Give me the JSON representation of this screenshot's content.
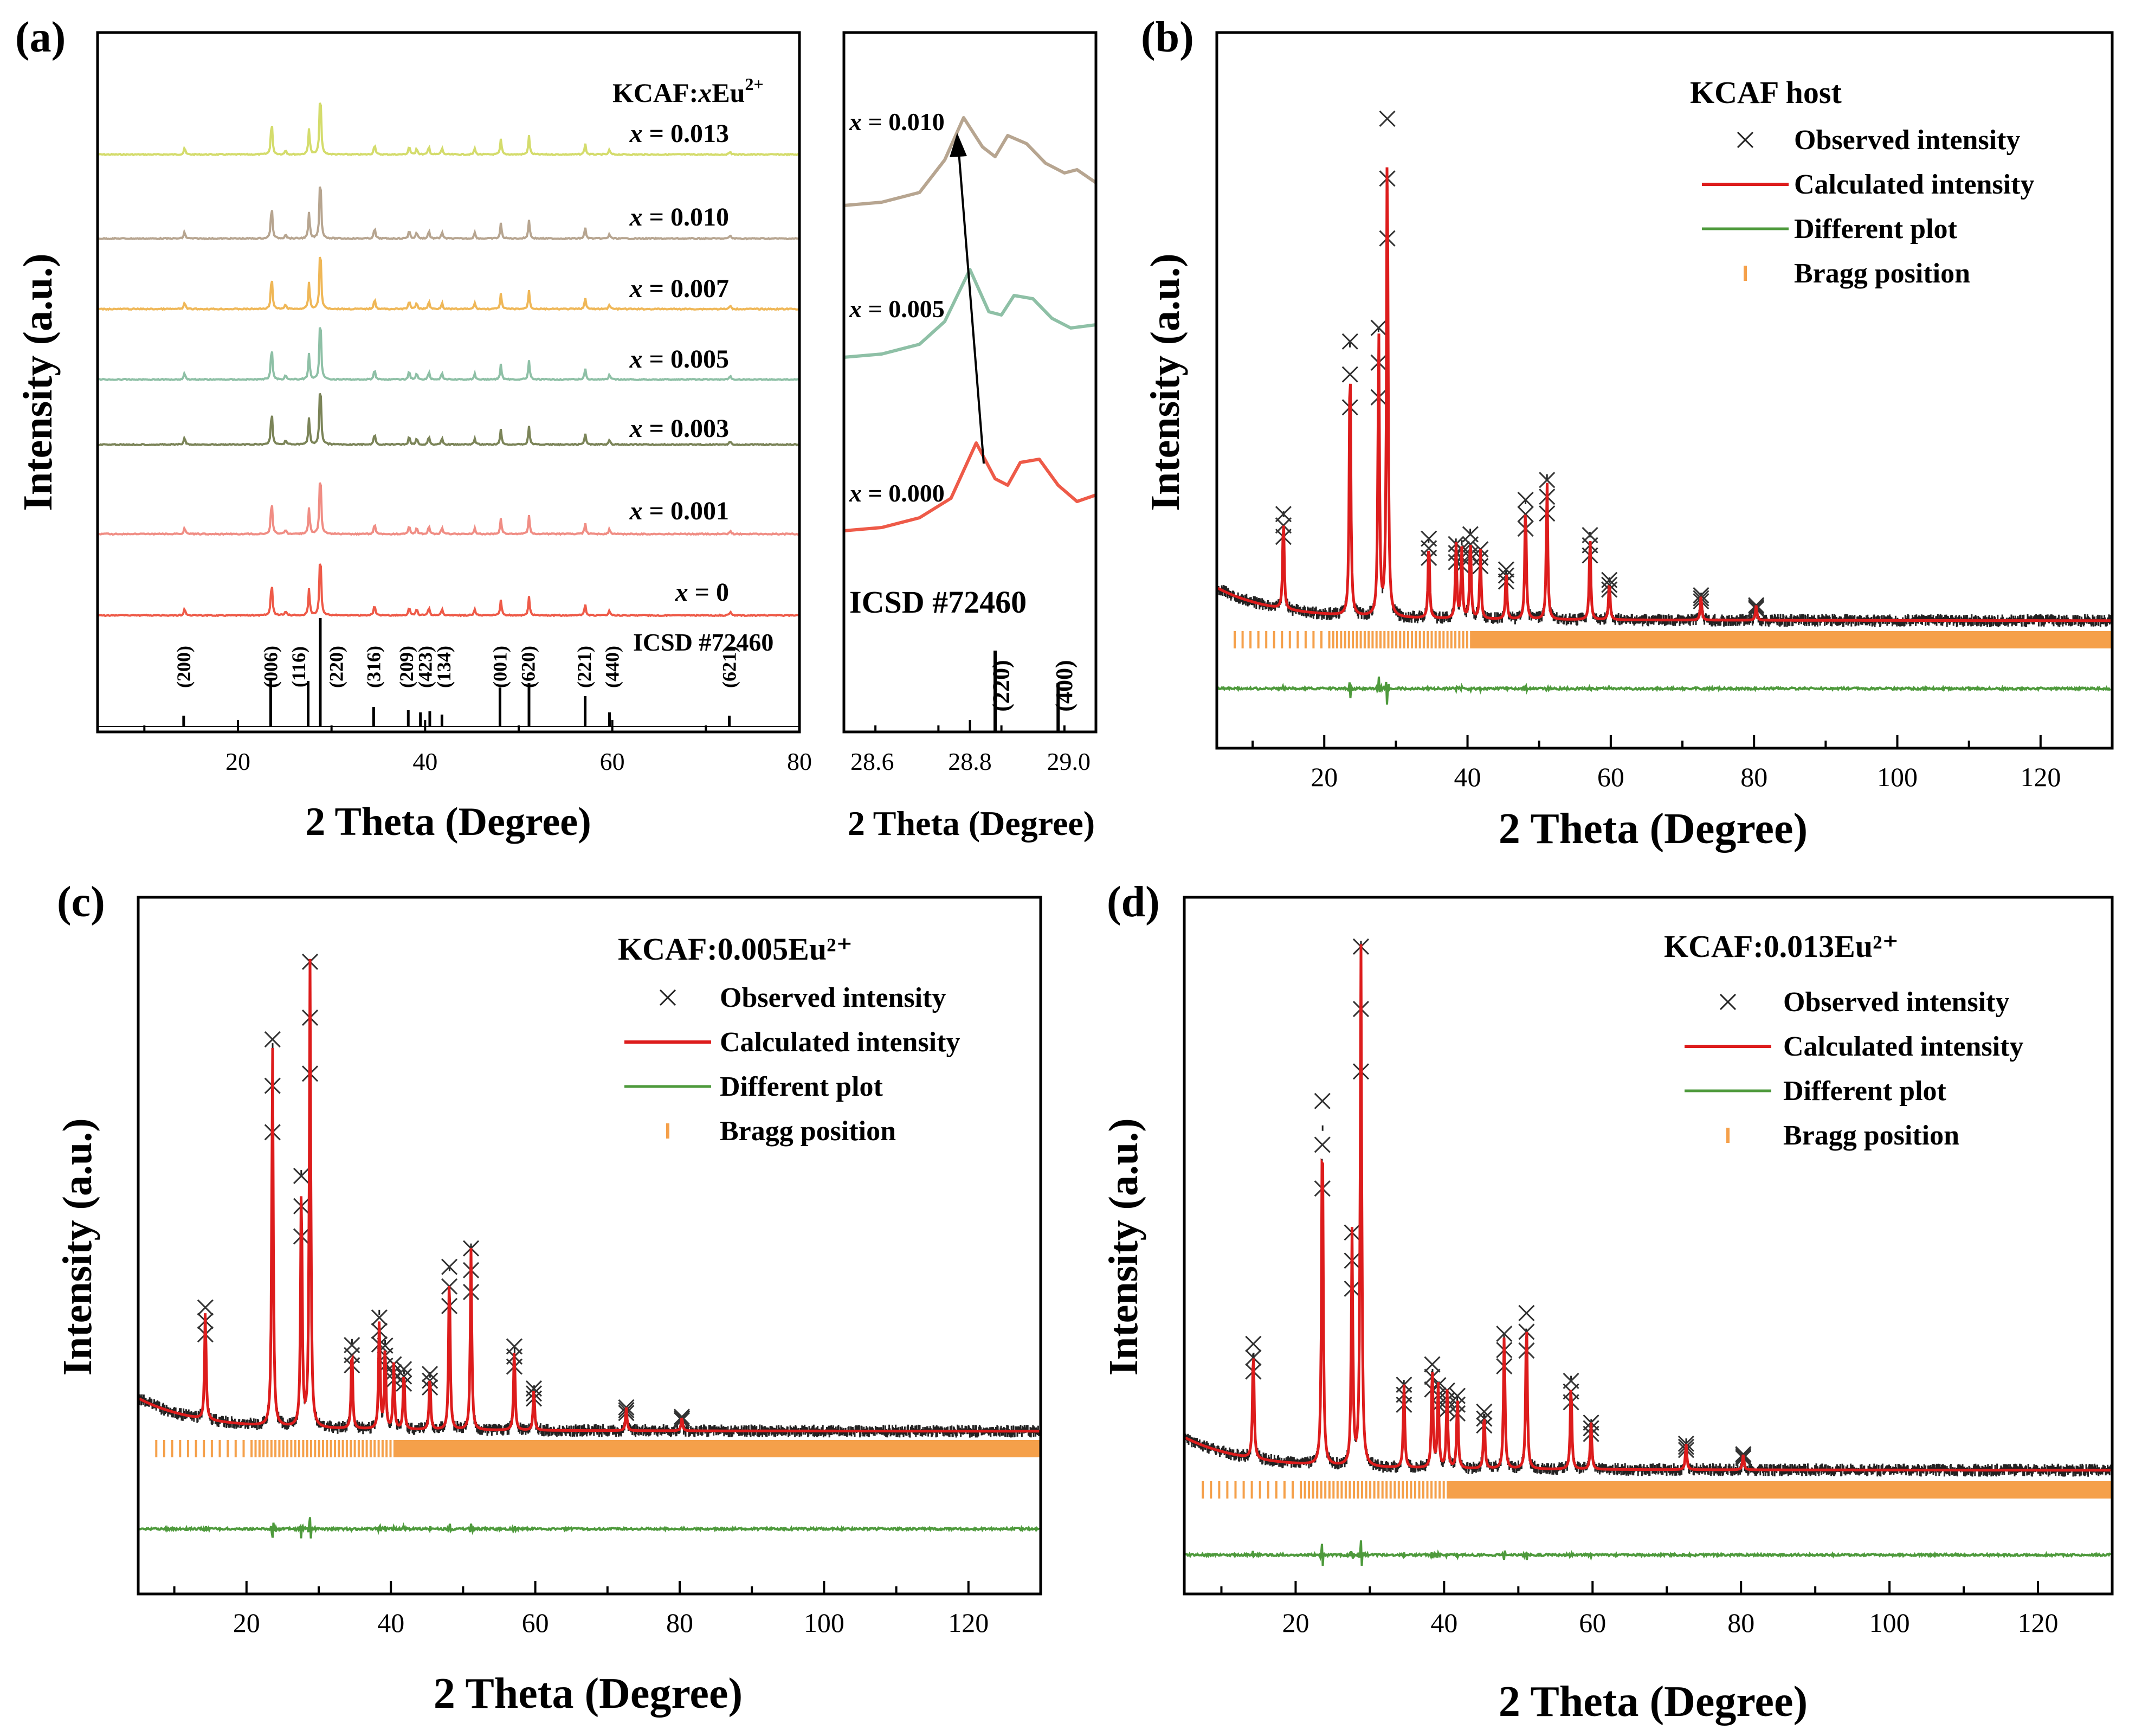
{
  "chart_data": [
    {
      "panel_label": "(a)",
      "type": "line",
      "xlabel": "2 Theta (Degree)",
      "ylabel": "Intensity (a.u.)",
      "xlim": [
        5,
        80
      ],
      "xticks": [
        20,
        40,
        60,
        80
      ],
      "legend_title": "KCAF:xEu²⁺",
      "series": [
        {
          "name": "x = 0.013",
          "color": "#d4dc6c"
        },
        {
          "name": "x = 0.010",
          "color": "#b7a590"
        },
        {
          "name": "x = 0.007",
          "color": "#efb757"
        },
        {
          "name": "x = 0.005",
          "color": "#8ec0a6"
        },
        {
          "name": "x = 0.003",
          "color": "#7b8458"
        },
        {
          "name": "x = 0.001",
          "color": "#f08d84"
        },
        {
          "name": "x = 0",
          "color": "#ee5a48"
        }
      ],
      "peaks": [
        {
          "x": 14.3,
          "h": 0.1
        },
        {
          "x": 23.6,
          "h": 0.52
        },
        {
          "x": 25.1,
          "h": 0.07
        },
        {
          "x": 27.6,
          "h": 0.38
        },
        {
          "x": 28.8,
          "h": 1.0
        },
        {
          "x": 34.6,
          "h": 0.16
        },
        {
          "x": 38.3,
          "h": 0.13
        },
        {
          "x": 39.1,
          "h": 0.1
        },
        {
          "x": 40.4,
          "h": 0.12
        },
        {
          "x": 41.8,
          "h": 0.1
        },
        {
          "x": 45.3,
          "h": 0.09
        },
        {
          "x": 48.1,
          "h": 0.22
        },
        {
          "x": 51.1,
          "h": 0.27
        },
        {
          "x": 57.1,
          "h": 0.16
        },
        {
          "x": 59.7,
          "h": 0.07
        },
        {
          "x": 72.6,
          "h": 0.05
        }
      ],
      "reference": {
        "label": "ICSD #72460",
        "sticks": [
          {
            "x": 14.2,
            "h": 0.1
          },
          {
            "x": 23.5,
            "h": 0.45
          },
          {
            "x": 27.5,
            "h": 0.42
          },
          {
            "x": 28.8,
            "h": 1.0
          },
          {
            "x": 34.5,
            "h": 0.18
          },
          {
            "x": 38.2,
            "h": 0.15
          },
          {
            "x": 39.5,
            "h": 0.13
          },
          {
            "x": 40.5,
            "h": 0.14
          },
          {
            "x": 41.8,
            "h": 0.11
          },
          {
            "x": 48.0,
            "h": 0.36
          },
          {
            "x": 51.1,
            "h": 0.4
          },
          {
            "x": 57.1,
            "h": 0.28
          },
          {
            "x": 59.7,
            "h": 0.13
          },
          {
            "x": 72.5,
            "h": 0.1
          }
        ],
        "hkl": [
          {
            "x": 14.2,
            "text": "(200)"
          },
          {
            "x": 23.5,
            "text": "(006)"
          },
          {
            "x": 26.5,
            "text": "(116)"
          },
          {
            "x": 30.5,
            "text": "(220)"
          },
          {
            "x": 34.5,
            "text": "(316)"
          },
          {
            "x": 38.0,
            "text": "(209)"
          },
          {
            "x": 40.0,
            "text": "(423)"
          },
          {
            "x": 42.0,
            "text": "(134)"
          },
          {
            "x": 48.0,
            "text": "(001)"
          },
          {
            "x": 51.0,
            "text": "(620)"
          },
          {
            "x": 57.0,
            "text": "(221)"
          },
          {
            "x": 60.0,
            "text": "(440)"
          },
          {
            "x": 72.5,
            "text": "(621)"
          }
        ]
      }
    },
    {
      "panel_label": "",
      "type": "line",
      "xlabel": "2 Theta (Degree)",
      "xlim": [
        28.6,
        29.0
      ],
      "xticks": [
        28.6,
        28.8,
        29.0
      ],
      "xtick_labels": [
        "28.6",
        "28.8",
        "29.0"
      ],
      "series": [
        {
          "name": "x = 0.010",
          "color": "#b7a590",
          "x": [
            28.6,
            28.66,
            28.72,
            28.76,
            28.79,
            28.82,
            28.84,
            28.86,
            28.89,
            28.92,
            28.95,
            28.97,
            29.0
          ],
          "y": [
            0.02,
            0.04,
            0.1,
            0.3,
            0.56,
            0.38,
            0.32,
            0.45,
            0.4,
            0.28,
            0.22,
            0.24,
            0.16
          ]
        },
        {
          "name": "x = 0.005",
          "color": "#8ec0a6",
          "x": [
            28.6,
            28.66,
            28.72,
            28.76,
            28.8,
            28.83,
            28.85,
            28.87,
            28.9,
            28.93,
            28.96,
            29.0
          ],
          "y": [
            0.02,
            0.04,
            0.1,
            0.24,
            0.56,
            0.3,
            0.28,
            0.4,
            0.38,
            0.26,
            0.2,
            0.22
          ]
        },
        {
          "name": "x = 0.000",
          "color": "#ee5a48",
          "x": [
            28.6,
            28.66,
            28.72,
            28.77,
            28.81,
            28.84,
            28.86,
            28.88,
            28.91,
            28.94,
            28.97,
            29.0
          ],
          "y": [
            0.02,
            0.04,
            0.1,
            0.22,
            0.56,
            0.34,
            0.3,
            0.44,
            0.46,
            0.3,
            0.2,
            0.24
          ]
        }
      ],
      "reference": {
        "label": "ICSD #72460",
        "sticks": [
          {
            "x": 28.84,
            "h": 1.0
          },
          {
            "x": 28.94,
            "h": 0.6
          }
        ],
        "hkl": [
          {
            "x": 28.85,
            "text": "(220)"
          },
          {
            "x": 28.95,
            "text": "(400)"
          }
        ]
      },
      "annotation": "arrow indicating peak shift to lower angle with increasing x"
    },
    {
      "panel_label": "(b)",
      "type": "line",
      "title": "KCAF host",
      "xlabel": "2 Theta (Degree)",
      "ylabel": "Intensity (a.u.)",
      "xlim": [
        5,
        130
      ],
      "xticks": [
        20,
        40,
        60,
        80,
        100,
        120
      ],
      "legend": [
        "Observed intensity",
        "Calculated intensity",
        "Different plot",
        "Bragg position"
      ],
      "colors": {
        "observed": "#222222",
        "calculated": "#dd1c1c",
        "difference": "#4e9a3c",
        "bragg": "#f5a04a"
      },
      "peaks": [
        {
          "x": 14.3,
          "h": 0.19
        },
        {
          "x": 23.6,
          "h": 0.55
        },
        {
          "x": 27.6,
          "h": 0.58
        },
        {
          "x": 28.8,
          "h": 1.0
        },
        {
          "x": 34.6,
          "h": 0.16
        },
        {
          "x": 38.4,
          "h": 0.15
        },
        {
          "x": 39.2,
          "h": 0.14
        },
        {
          "x": 40.4,
          "h": 0.17
        },
        {
          "x": 41.8,
          "h": 0.14
        },
        {
          "x": 45.4,
          "h": 0.1
        },
        {
          "x": 48.1,
          "h": 0.24
        },
        {
          "x": 51.1,
          "h": 0.28
        },
        {
          "x": 57.1,
          "h": 0.17
        },
        {
          "x": 59.8,
          "h": 0.08
        },
        {
          "x": 72.6,
          "h": 0.05
        },
        {
          "x": 80.3,
          "h": 0.03
        }
      ]
    },
    {
      "panel_label": "(c)",
      "type": "line",
      "title": "KCAF:0.005Eu²⁺",
      "xlabel": "2 Theta (Degree)",
      "ylabel": "Intensity (a.u.)",
      "xlim": [
        5,
        130
      ],
      "xticks": [
        20,
        40,
        60,
        80,
        100,
        120
      ],
      "legend": [
        "Observed intensity",
        "Calculated intensity",
        "Different plot",
        "Bragg position"
      ],
      "colors": {
        "observed": "#222222",
        "calculated": "#dd1c1c",
        "difference": "#4e9a3c",
        "bragg": "#f5a04a"
      },
      "peaks": [
        {
          "x": 14.3,
          "h": 0.24
        },
        {
          "x": 23.6,
          "h": 0.83
        },
        {
          "x": 27.6,
          "h": 0.54
        },
        {
          "x": 28.8,
          "h": 1.0
        },
        {
          "x": 34.6,
          "h": 0.18
        },
        {
          "x": 38.4,
          "h": 0.24
        },
        {
          "x": 39.2,
          "h": 0.18
        },
        {
          "x": 40.4,
          "h": 0.14
        },
        {
          "x": 41.8,
          "h": 0.13
        },
        {
          "x": 45.4,
          "h": 0.12
        },
        {
          "x": 48.1,
          "h": 0.35
        },
        {
          "x": 51.1,
          "h": 0.39
        },
        {
          "x": 57.1,
          "h": 0.18
        },
        {
          "x": 59.8,
          "h": 0.09
        },
        {
          "x": 72.6,
          "h": 0.05
        },
        {
          "x": 80.3,
          "h": 0.03
        }
      ]
    },
    {
      "panel_label": "(d)",
      "type": "line",
      "title": "KCAF:0.013Eu²⁺",
      "xlabel": "2 Theta (Degree)",
      "ylabel": "Intensity (a.u.)",
      "xlim": [
        5,
        130
      ],
      "xticks": [
        20,
        40,
        60,
        80,
        100,
        120
      ],
      "legend": [
        "Observed intensity",
        "Calculated intensity",
        "Different plot",
        "Bragg position"
      ],
      "colors": {
        "observed": "#222222",
        "calculated": "#dd1c1c",
        "difference": "#4e9a3c",
        "bragg": "#f5a04a"
      },
      "peaks": [
        {
          "x": 14.3,
          "h": 0.22
        },
        {
          "x": 23.6,
          "h": 0.7
        },
        {
          "x": 27.6,
          "h": 0.45
        },
        {
          "x": 28.8,
          "h": 1.0
        },
        {
          "x": 34.6,
          "h": 0.16
        },
        {
          "x": 38.4,
          "h": 0.2
        },
        {
          "x": 39.2,
          "h": 0.16
        },
        {
          "x": 40.4,
          "h": 0.15
        },
        {
          "x": 41.8,
          "h": 0.14
        },
        {
          "x": 45.4,
          "h": 0.11
        },
        {
          "x": 48.1,
          "h": 0.26
        },
        {
          "x": 51.1,
          "h": 0.3
        },
        {
          "x": 57.1,
          "h": 0.17
        },
        {
          "x": 59.8,
          "h": 0.09
        },
        {
          "x": 72.6,
          "h": 0.05
        },
        {
          "x": 80.3,
          "h": 0.03
        }
      ]
    }
  ],
  "icons": {
    "arrow": "arrow-icon",
    "observed_marker": "x-marker-icon"
  }
}
